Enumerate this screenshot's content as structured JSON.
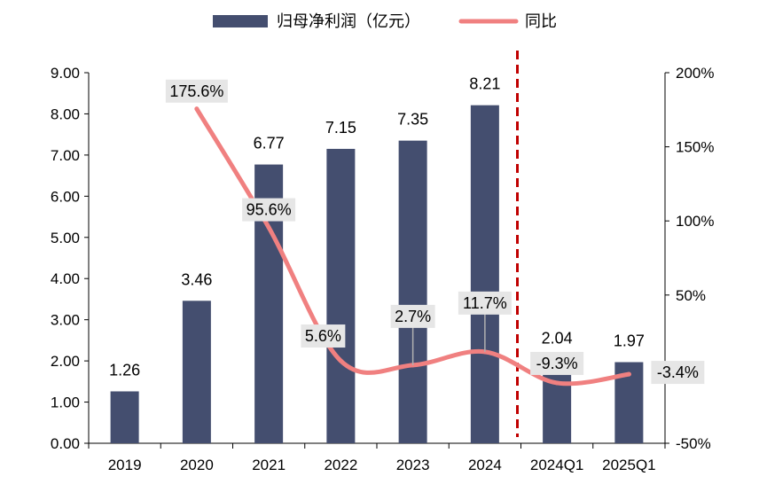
{
  "chart_data": {
    "type": "bar",
    "categories": [
      "2019",
      "2020",
      "2021",
      "2022",
      "2023",
      "2024",
      "2024Q1",
      "2025Q1"
    ],
    "series": [
      {
        "name": "归母净利润（亿元）",
        "type": "bar",
        "axis": "left",
        "color": "#444E6F",
        "values": [
          1.26,
          3.46,
          6.77,
          7.15,
          7.35,
          8.21,
          2.04,
          1.97
        ],
        "labels": [
          "1.26",
          "3.46",
          "6.77",
          "7.15",
          "7.35",
          "8.21",
          "2.04",
          "1.97"
        ]
      },
      {
        "name": "同比",
        "type": "line",
        "axis": "right",
        "color": "#F08080",
        "values": [
          null,
          175.6,
          95.6,
          5.6,
          2.7,
          11.7,
          -9.3,
          -3.4
        ],
        "labels": [
          "",
          "175.6%",
          "95.6%",
          "5.6%",
          "2.7%",
          "11.7%",
          "-9.3%",
          "-3.4%"
        ]
      }
    ],
    "y_left": {
      "lim": [
        0,
        9
      ],
      "ticks": [
        "0.00",
        "1.00",
        "2.00",
        "3.00",
        "4.00",
        "5.00",
        "6.00",
        "7.00",
        "8.00",
        "9.00"
      ]
    },
    "y_right": {
      "lim": [
        -50,
        200
      ],
      "ticks": [
        "-50%",
        "0%",
        "50%",
        "100%",
        "150%",
        "200%"
      ]
    },
    "divider": {
      "between": [
        "2024",
        "2024Q1"
      ],
      "style": "dashed",
      "color": "#C00000"
    },
    "legend_position": "top",
    "grid": false
  }
}
